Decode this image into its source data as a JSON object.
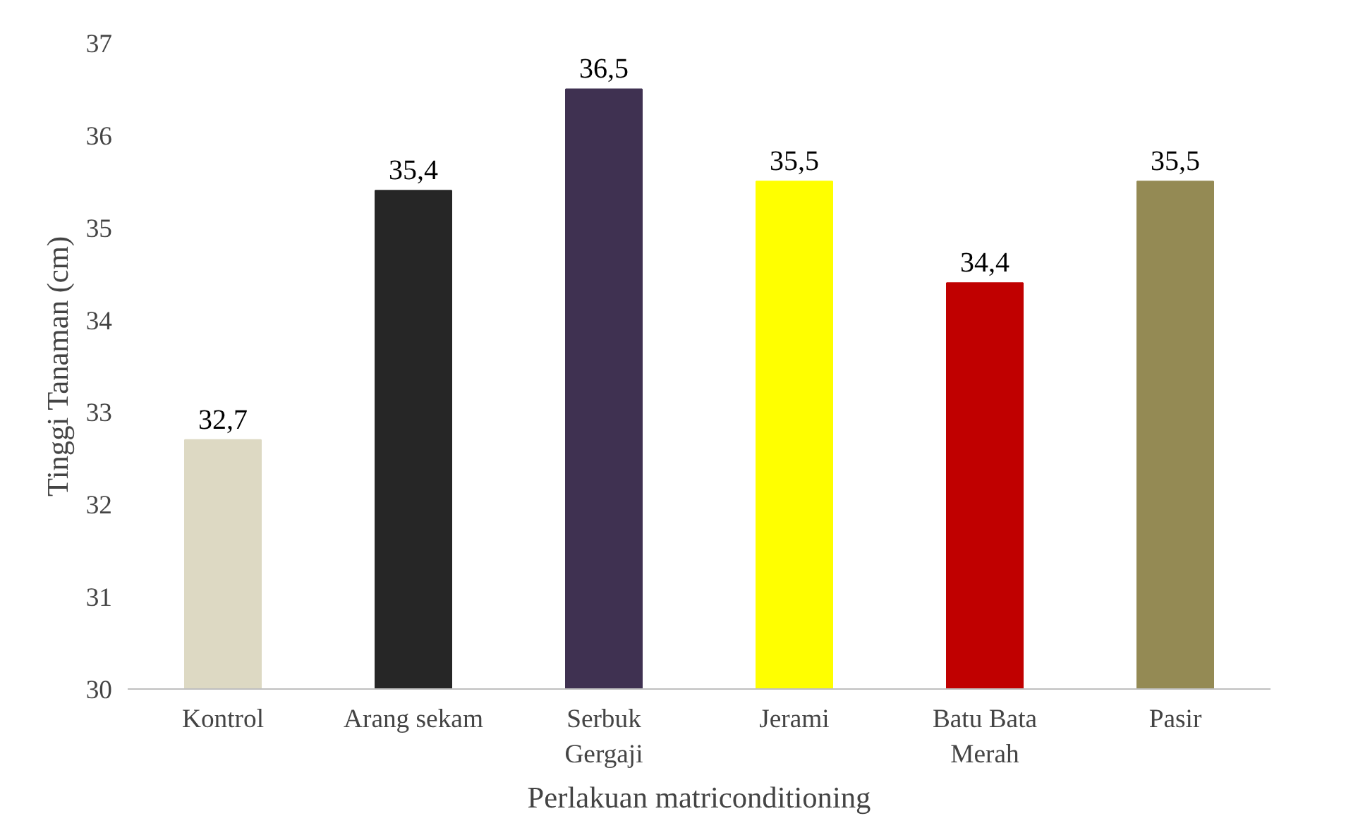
{
  "chart_data": {
    "type": "bar",
    "xlabel": "Perlakuan matriconditioning",
    "ylabel": "Tinggi Tanaman (cm)",
    "categories": [
      "Kontrol",
      "Arang sekam",
      "Serbuk\nGergaji",
      "Jerami",
      "Batu Bata\nMerah",
      "Pasir"
    ],
    "values": [
      32.7,
      35.4,
      36.5,
      35.5,
      34.4,
      35.5
    ],
    "value_labels": [
      "32,7",
      "35,4",
      "36,5",
      "35,5",
      "34,4",
      "35,5"
    ],
    "colors": [
      "#ddd9c3",
      "#262626",
      "#3f3151",
      "#ffff00",
      "#c00000",
      "#948a54"
    ],
    "ylim": [
      30,
      37
    ],
    "yticks": [
      30,
      31,
      32,
      33,
      34,
      35,
      36,
      37
    ],
    "grid": false
  }
}
